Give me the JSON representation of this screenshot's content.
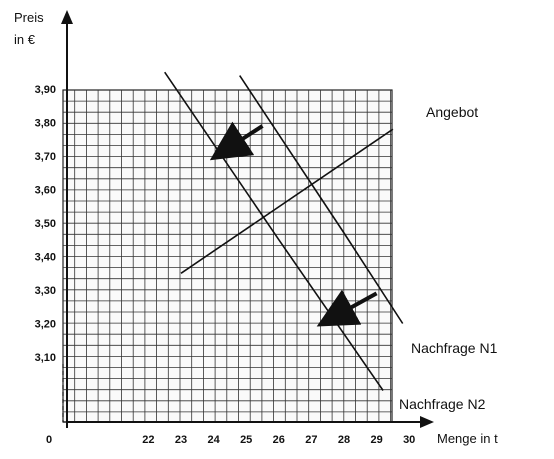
{
  "chart_data": {
    "type": "line",
    "xlabel": "Menge in t",
    "ylabel_line1": "Preis",
    "ylabel_line2": "in €",
    "origin_label": "0",
    "x_ticks": [
      22,
      23,
      24,
      25,
      26,
      27,
      28,
      29,
      30
    ],
    "x_tick_labels": [
      "22",
      "23",
      "24",
      "25",
      "26",
      "27",
      "28",
      "29",
      "30"
    ],
    "y_ticks": [
      3.1,
      3.2,
      3.3,
      3.4,
      3.5,
      3.6,
      3.7,
      3.8,
      3.9
    ],
    "y_tick_labels": [
      "3,10",
      "3,20",
      "3,30",
      "3,40",
      "3,50",
      "3,60",
      "3,70",
      "3,80",
      "3,90"
    ],
    "grid": true,
    "series": [
      {
        "name": "Angebot",
        "x": [
          23.0,
          29.5
        ],
        "y": [
          3.35,
          3.78
        ]
      },
      {
        "name": "Nachfrage N1",
        "x": [
          24.8,
          28.0,
          29.8
        ],
        "y": [
          3.94,
          3.47,
          3.2
        ]
      },
      {
        "name": "Nachfrage N2",
        "x": [
          22.5,
          26.0,
          29.2
        ],
        "y": [
          3.95,
          3.45,
          3.0
        ]
      }
    ],
    "arrows": [
      {
        "from": [
          25.5,
          3.79
        ],
        "to": [
          24.4,
          3.72
        ]
      },
      {
        "from": [
          29.0,
          3.29
        ],
        "to": [
          27.7,
          3.22
        ]
      }
    ]
  }
}
